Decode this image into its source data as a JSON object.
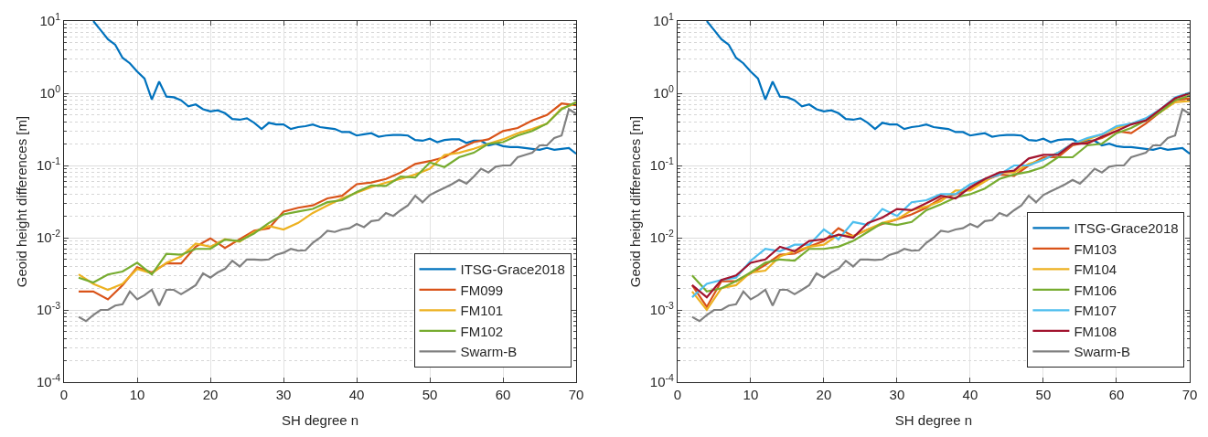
{
  "chart_data": [
    {
      "type": "line",
      "xlabel": "SH degree n",
      "ylabel": "Geoid height differences [m]",
      "log": "y",
      "grid": true,
      "legend": "bottom right",
      "marker": "none",
      "line_style": "solid",
      "xlim": [
        0,
        70
      ],
      "xticks": [
        0,
        10,
        20,
        30,
        40,
        50,
        60,
        70
      ],
      "ylim": [
        0.0001,
        10
      ],
      "yticks": [
        {
          "value": 0.0001,
          "label": "10$^{-4}$"
        },
        {
          "value": 0.001,
          "label": "10$^{-3}$"
        },
        {
          "value": 0.01,
          "label": "10$^{-2}$"
        },
        {
          "value": 0.1,
          "label": "10$^{-1}$"
        },
        {
          "value": 1,
          "label": "10$^{0}$"
        },
        {
          "value": 10,
          "label": "10$^{1}$"
        }
      ],
      "series": [
        {
          "name": "ITSG-Grace2018",
          "color": "#0072bd",
          "x": [
            4,
            5,
            6,
            7,
            8,
            9,
            10,
            11,
            12,
            13,
            14,
            15,
            16,
            17,
            18,
            19,
            20,
            21,
            22,
            23,
            24,
            25,
            26,
            27,
            28,
            29,
            30,
            31,
            32,
            33,
            34,
            35,
            36,
            37,
            38,
            39,
            40,
            41,
            42,
            43,
            44,
            45,
            46,
            47,
            48,
            49,
            50,
            51,
            52,
            53,
            54,
            55,
            56,
            57,
            58,
            59,
            60,
            61,
            62,
            63,
            64,
            65,
            66,
            67,
            68,
            69,
            70
          ],
          "values": [
            10,
            7.5,
            5.6,
            4.7,
            3.1,
            2.6,
            2.0,
            1.6,
            0.82,
            1.45,
            0.9,
            0.88,
            0.8,
            0.66,
            0.7,
            0.6,
            0.56,
            0.58,
            0.53,
            0.44,
            0.43,
            0.45,
            0.39,
            0.32,
            0.39,
            0.37,
            0.37,
            0.32,
            0.34,
            0.35,
            0.37,
            0.34,
            0.33,
            0.32,
            0.29,
            0.29,
            0.26,
            0.27,
            0.28,
            0.25,
            0.26,
            0.265,
            0.265,
            0.26,
            0.225,
            0.22,
            0.235,
            0.21,
            0.225,
            0.23,
            0.23,
            0.205,
            0.22,
            0.22,
            0.19,
            0.2,
            0.185,
            0.18,
            0.18,
            0.175,
            0.17,
            0.165,
            0.175,
            0.165,
            0.17,
            0.175,
            0.145
          ]
        },
        {
          "name": "FM099",
          "color": "#d95319",
          "x": [
            2,
            4,
            6,
            8,
            10,
            12,
            14,
            16,
            18,
            20,
            22,
            24,
            26,
            28,
            30,
            32,
            34,
            36,
            38,
            40,
            42,
            44,
            46,
            48,
            50,
            52,
            54,
            56,
            58,
            60,
            62,
            64,
            66,
            68,
            70
          ],
          "values": [
            0.0018,
            0.0018,
            0.0014,
            0.0022,
            0.0039,
            0.0033,
            0.0044,
            0.0044,
            0.0075,
            0.0098,
            0.0072,
            0.0095,
            0.0125,
            0.0135,
            0.023,
            0.026,
            0.028,
            0.035,
            0.038,
            0.055,
            0.058,
            0.065,
            0.08,
            0.105,
            0.115,
            0.13,
            0.17,
            0.21,
            0.23,
            0.3,
            0.33,
            0.42,
            0.5,
            0.72,
            0.68
          ]
        },
        {
          "name": "FM101",
          "color": "#edb120",
          "x": [
            2,
            4,
            6,
            8,
            10,
            12,
            14,
            16,
            18,
            20,
            22,
            24,
            26,
            28,
            30,
            32,
            34,
            36,
            38,
            40,
            42,
            44,
            46,
            48,
            50,
            52,
            54,
            56,
            58,
            60,
            62,
            64,
            66,
            68,
            70
          ],
          "values": [
            0.0031,
            0.0023,
            0.0019,
            0.0023,
            0.0037,
            0.0032,
            0.0045,
            0.0055,
            0.0083,
            0.0075,
            0.0095,
            0.0088,
            0.012,
            0.0145,
            0.013,
            0.016,
            0.022,
            0.028,
            0.035,
            0.042,
            0.05,
            0.058,
            0.065,
            0.075,
            0.09,
            0.14,
            0.15,
            0.17,
            0.2,
            0.23,
            0.28,
            0.32,
            0.38,
            0.62,
            0.72
          ]
        },
        {
          "name": "FM102",
          "color": "#77ac30",
          "x": [
            2,
            4,
            6,
            8,
            10,
            12,
            14,
            16,
            18,
            20,
            22,
            24,
            26,
            28,
            30,
            32,
            34,
            36,
            38,
            40,
            42,
            44,
            46,
            48,
            50,
            52,
            54,
            56,
            58,
            60,
            62,
            64,
            66,
            68,
            70
          ],
          "values": [
            0.0028,
            0.0024,
            0.0031,
            0.0034,
            0.0045,
            0.0031,
            0.006,
            0.0058,
            0.007,
            0.007,
            0.0094,
            0.009,
            0.0115,
            0.016,
            0.021,
            0.023,
            0.025,
            0.031,
            0.033,
            0.043,
            0.053,
            0.052,
            0.07,
            0.068,
            0.11,
            0.095,
            0.13,
            0.15,
            0.2,
            0.21,
            0.26,
            0.3,
            0.38,
            0.6,
            0.76
          ]
        },
        {
          "name": "Swarm-B",
          "color": "#808080",
          "x": [
            2,
            3,
            4,
            5,
            6,
            7,
            8,
            9,
            10,
            11,
            12,
            13,
            14,
            15,
            16,
            17,
            18,
            19,
            20,
            21,
            22,
            23,
            24,
            25,
            26,
            27,
            28,
            29,
            30,
            31,
            32,
            33,
            34,
            35,
            36,
            37,
            38,
            39,
            40,
            41,
            42,
            43,
            44,
            45,
            46,
            47,
            48,
            49,
            50,
            51,
            52,
            53,
            54,
            55,
            56,
            57,
            58,
            59,
            60,
            61,
            62,
            63,
            64,
            65,
            66,
            67,
            68,
            69,
            70
          ],
          "values": [
            0.0008,
            0.0007,
            0.00085,
            0.001,
            0.001,
            0.00115,
            0.0012,
            0.0018,
            0.0014,
            0.0016,
            0.0019,
            0.00115,
            0.0019,
            0.0019,
            0.00165,
            0.0019,
            0.0022,
            0.0032,
            0.0028,
            0.0033,
            0.0037,
            0.0048,
            0.004,
            0.005,
            0.005,
            0.0049,
            0.005,
            0.0058,
            0.0062,
            0.007,
            0.0066,
            0.0067,
            0.0085,
            0.01,
            0.0125,
            0.012,
            0.013,
            0.0135,
            0.0155,
            0.014,
            0.017,
            0.0175,
            0.022,
            0.02,
            0.024,
            0.028,
            0.038,
            0.031,
            0.039,
            0.044,
            0.049,
            0.055,
            0.063,
            0.056,
            0.07,
            0.09,
            0.08,
            0.096,
            0.1,
            0.1,
            0.13,
            0.14,
            0.15,
            0.19,
            0.19,
            0.24,
            0.26,
            0.6,
            0.52
          ]
        }
      ]
    },
    {
      "type": "line",
      "xlabel": "SH degree n",
      "ylabel": "Geoid height differences [m]",
      "log": "y",
      "grid": true,
      "legend": "bottom right",
      "marker": "none",
      "line_style": "solid",
      "xlim": [
        0,
        70
      ],
      "xticks": [
        0,
        10,
        20,
        30,
        40,
        50,
        60,
        70
      ],
      "ylim": [
        0.0001,
        10
      ],
      "yticks": [
        {
          "value": 0.0001,
          "label": "10$^{-4}$"
        },
        {
          "value": 0.001,
          "label": "10$^{-3}$"
        },
        {
          "value": 0.01,
          "label": "10$^{-2}$"
        },
        {
          "value": 0.1,
          "label": "10$^{-1}$"
        },
        {
          "value": 1,
          "label": "10$^{0}$"
        },
        {
          "value": 10,
          "label": "10$^{1}$"
        }
      ],
      "series": [
        {
          "name": "ITSG-Grace2018",
          "color": "#0072bd",
          "x": [
            4,
            5,
            6,
            7,
            8,
            9,
            10,
            11,
            12,
            13,
            14,
            15,
            16,
            17,
            18,
            19,
            20,
            21,
            22,
            23,
            24,
            25,
            26,
            27,
            28,
            29,
            30,
            31,
            32,
            33,
            34,
            35,
            36,
            37,
            38,
            39,
            40,
            41,
            42,
            43,
            44,
            45,
            46,
            47,
            48,
            49,
            50,
            51,
            52,
            53,
            54,
            55,
            56,
            57,
            58,
            59,
            60,
            61,
            62,
            63,
            64,
            65,
            66,
            67,
            68,
            69,
            70
          ],
          "values": [
            10,
            7.5,
            5.6,
            4.7,
            3.1,
            2.6,
            2.0,
            1.6,
            0.82,
            1.45,
            0.9,
            0.88,
            0.8,
            0.66,
            0.7,
            0.6,
            0.56,
            0.58,
            0.53,
            0.44,
            0.43,
            0.45,
            0.39,
            0.32,
            0.39,
            0.37,
            0.37,
            0.32,
            0.34,
            0.35,
            0.37,
            0.34,
            0.33,
            0.32,
            0.29,
            0.29,
            0.26,
            0.27,
            0.28,
            0.25,
            0.26,
            0.265,
            0.265,
            0.26,
            0.225,
            0.22,
            0.235,
            0.21,
            0.225,
            0.23,
            0.23,
            0.205,
            0.22,
            0.22,
            0.19,
            0.2,
            0.185,
            0.18,
            0.18,
            0.175,
            0.17,
            0.165,
            0.175,
            0.165,
            0.17,
            0.175,
            0.145
          ]
        },
        {
          "name": "FM103",
          "color": "#d95319",
          "x": [
            2,
            4,
            6,
            8,
            10,
            12,
            14,
            16,
            18,
            20,
            22,
            24,
            26,
            28,
            30,
            32,
            34,
            36,
            38,
            40,
            42,
            44,
            46,
            48,
            50,
            52,
            54,
            56,
            58,
            60,
            62,
            64,
            66,
            68,
            70
          ],
          "values": [
            0.0022,
            0.0011,
            0.0025,
            0.0025,
            0.0032,
            0.0042,
            0.0058,
            0.006,
            0.0075,
            0.009,
            0.0135,
            0.0105,
            0.013,
            0.0155,
            0.018,
            0.021,
            0.026,
            0.035,
            0.04,
            0.048,
            0.062,
            0.075,
            0.072,
            0.1,
            0.13,
            0.13,
            0.19,
            0.21,
            0.24,
            0.3,
            0.28,
            0.38,
            0.55,
            0.8,
            0.85
          ]
        },
        {
          "name": "FM104",
          "color": "#edb120",
          "x": [
            2,
            4,
            6,
            8,
            10,
            12,
            14,
            16,
            18,
            20,
            22,
            24,
            26,
            28,
            30,
            32,
            34,
            36,
            38,
            40,
            42,
            44,
            46,
            48,
            50,
            52,
            54,
            56,
            58,
            60,
            62,
            64,
            66,
            68,
            70
          ],
          "values": [
            0.0018,
            0.001,
            0.002,
            0.0022,
            0.0033,
            0.0035,
            0.0055,
            0.0065,
            0.0075,
            0.008,
            0.011,
            0.0105,
            0.013,
            0.016,
            0.018,
            0.024,
            0.027,
            0.032,
            0.045,
            0.045,
            0.06,
            0.08,
            0.08,
            0.105,
            0.12,
            0.15,
            0.2,
            0.23,
            0.27,
            0.33,
            0.38,
            0.42,
            0.55,
            0.75,
            0.78
          ]
        },
        {
          "name": "FM106",
          "color": "#77ac30",
          "x": [
            2,
            4,
            6,
            8,
            10,
            12,
            14,
            16,
            18,
            20,
            22,
            24,
            26,
            28,
            30,
            32,
            34,
            36,
            38,
            40,
            42,
            44,
            46,
            48,
            50,
            52,
            54,
            56,
            58,
            60,
            62,
            64,
            66,
            68,
            70
          ],
          "values": [
            0.003,
            0.0018,
            0.002,
            0.0025,
            0.0033,
            0.0045,
            0.005,
            0.0048,
            0.007,
            0.007,
            0.0075,
            0.009,
            0.012,
            0.016,
            0.015,
            0.0165,
            0.024,
            0.029,
            0.036,
            0.04,
            0.048,
            0.065,
            0.075,
            0.082,
            0.095,
            0.13,
            0.13,
            0.19,
            0.2,
            0.28,
            0.33,
            0.42,
            0.55,
            0.8,
            0.93
          ]
        },
        {
          "name": "FM107",
          "color": "#4dbeee",
          "x": [
            2,
            4,
            6,
            8,
            10,
            12,
            14,
            16,
            18,
            20,
            22,
            24,
            26,
            28,
            30,
            32,
            34,
            36,
            38,
            40,
            42,
            44,
            46,
            48,
            50,
            52,
            54,
            56,
            58,
            60,
            62,
            64,
            66,
            68,
            70
          ],
          "values": [
            0.0015,
            0.0023,
            0.0026,
            0.0028,
            0.0048,
            0.007,
            0.0065,
            0.008,
            0.008,
            0.013,
            0.0095,
            0.0165,
            0.015,
            0.025,
            0.02,
            0.031,
            0.033,
            0.04,
            0.04,
            0.055,
            0.065,
            0.075,
            0.1,
            0.1,
            0.12,
            0.15,
            0.2,
            0.24,
            0.27,
            0.35,
            0.38,
            0.45,
            0.6,
            0.88,
            1.02
          ]
        },
        {
          "name": "FM108",
          "color": "#a2142f",
          "x": [
            2,
            4,
            6,
            8,
            10,
            12,
            14,
            16,
            18,
            20,
            22,
            24,
            26,
            28,
            30,
            32,
            34,
            36,
            38,
            40,
            42,
            44,
            46,
            48,
            50,
            52,
            54,
            56,
            58,
            60,
            62,
            64,
            66,
            68,
            70
          ],
          "values": [
            0.0022,
            0.0015,
            0.0026,
            0.003,
            0.0045,
            0.005,
            0.0075,
            0.0065,
            0.009,
            0.0095,
            0.011,
            0.01,
            0.016,
            0.019,
            0.025,
            0.024,
            0.03,
            0.038,
            0.035,
            0.05,
            0.065,
            0.08,
            0.085,
            0.125,
            0.14,
            0.14,
            0.2,
            0.2,
            0.25,
            0.3,
            0.37,
            0.42,
            0.6,
            0.85,
            1.0
          ]
        },
        {
          "name": "Swarm-B",
          "color": "#808080",
          "x": [
            2,
            3,
            4,
            5,
            6,
            7,
            8,
            9,
            10,
            11,
            12,
            13,
            14,
            15,
            16,
            17,
            18,
            19,
            20,
            21,
            22,
            23,
            24,
            25,
            26,
            27,
            28,
            29,
            30,
            31,
            32,
            33,
            34,
            35,
            36,
            37,
            38,
            39,
            40,
            41,
            42,
            43,
            44,
            45,
            46,
            47,
            48,
            49,
            50,
            51,
            52,
            53,
            54,
            55,
            56,
            57,
            58,
            59,
            60,
            61,
            62,
            63,
            64,
            65,
            66,
            67,
            68,
            69,
            70
          ],
          "values": [
            0.0008,
            0.0007,
            0.00085,
            0.001,
            0.001,
            0.00115,
            0.0012,
            0.0018,
            0.0014,
            0.0016,
            0.0019,
            0.00115,
            0.0019,
            0.0019,
            0.00165,
            0.0019,
            0.0022,
            0.0032,
            0.0028,
            0.0033,
            0.0037,
            0.0048,
            0.004,
            0.005,
            0.005,
            0.0049,
            0.005,
            0.0058,
            0.0062,
            0.007,
            0.0066,
            0.0067,
            0.0085,
            0.01,
            0.0125,
            0.012,
            0.013,
            0.0135,
            0.0155,
            0.014,
            0.017,
            0.0175,
            0.022,
            0.02,
            0.024,
            0.028,
            0.038,
            0.031,
            0.039,
            0.044,
            0.049,
            0.055,
            0.063,
            0.056,
            0.07,
            0.09,
            0.08,
            0.096,
            0.1,
            0.1,
            0.13,
            0.14,
            0.15,
            0.19,
            0.19,
            0.24,
            0.26,
            0.6,
            0.52
          ]
        }
      ]
    }
  ]
}
